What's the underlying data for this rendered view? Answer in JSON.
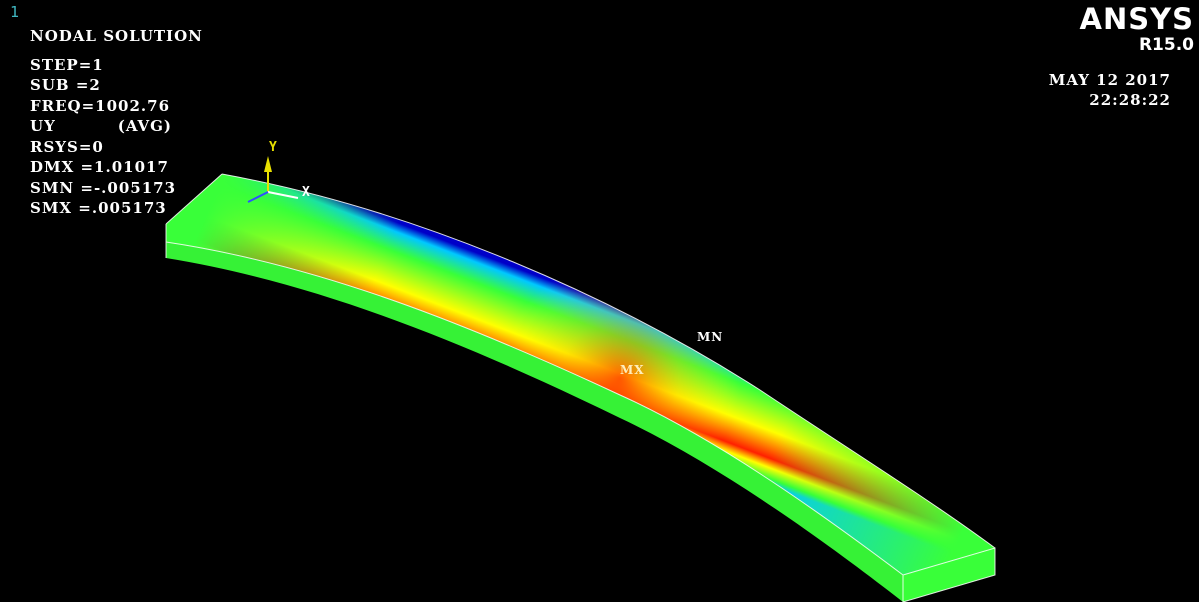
{
  "window_number": "1",
  "solution": {
    "title": "NODAL SOLUTION",
    "step": "STEP=1",
    "sub": "SUB =2",
    "freq": "FREQ=1002.76",
    "item": "UY",
    "avg": "(AVG)",
    "rsys": "RSYS=0",
    "dmx": "DMX =1.01017",
    "smn": "SMN =-.005173",
    "smx": "SMX =.005173"
  },
  "brand": {
    "logo": "ANSYS",
    "version": "R15.0"
  },
  "datetime": {
    "date": "MAY 12 2017",
    "time": "22:28:22"
  },
  "triad": {
    "y_label": "Y",
    "x_label": "X"
  },
  "markers": {
    "min_label": "MN",
    "max_label": "MX"
  },
  "colors": {
    "background": "#000000",
    "contour_min": "#0000c8",
    "contour_low": "#00c8ff",
    "contour_mid": "#39ff39",
    "contour_high": "#ffff00",
    "contour_max": "#ff2000"
  }
}
